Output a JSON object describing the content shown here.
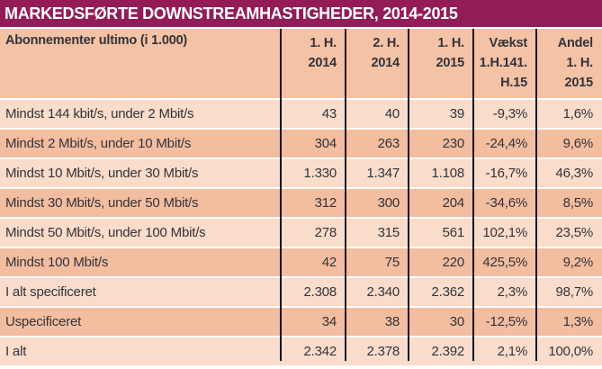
{
  "title": "MARKEDSFØRTE DOWNSTREAMHASTIGHEDER, 2014-2015",
  "colors": {
    "title_bg": "#931C58",
    "title_text": "#FFFFFF",
    "header_bg": "#F4C2A4",
    "row_dark": "#F3BD9F",
    "row_light": "#F9DCC9",
    "grid_line": "#17171C",
    "text": "#33333C",
    "separator": "#FFFFFF"
  },
  "table": {
    "corner_label": "Abonnementer ultimo (i 1.000)",
    "column_headers": [
      {
        "line1": "1. H.",
        "line2": "2014",
        "line3": ""
      },
      {
        "line1": "2. H.",
        "line2": "2014",
        "line3": ""
      },
      {
        "line1": "1. H.",
        "line2": "2015",
        "line3": ""
      },
      {
        "line1": "Vækst",
        "line2": "1.H.141.",
        "line3": "H.15"
      },
      {
        "line1": "Andel",
        "line2": "1. H.",
        "line3": "2015"
      }
    ],
    "rows": [
      {
        "label": "Mindst 144 kbit/s, under 2 Mbit/s",
        "values": [
          "43",
          "40",
          "39",
          "-9,3%",
          "1,6%"
        ]
      },
      {
        "label": "Mindst 2 Mbit/s, under 10 Mbit/s",
        "values": [
          "304",
          "263",
          "230",
          "-24,4%",
          "9,6%"
        ]
      },
      {
        "label": "Mindst 10 Mbit/s, under 30 Mbit/s",
        "values": [
          "1.330",
          "1.347",
          "1.108",
          "-16,7%",
          "46,3%"
        ]
      },
      {
        "label": "Mindst 30 Mbit/s, under 50 Mbit/s",
        "values": [
          "312",
          "300",
          "204",
          "-34,6%",
          "8,5%"
        ]
      },
      {
        "label": "Mindst 50 Mbit/s, under 100 Mbit/s",
        "values": [
          "278",
          "315",
          "561",
          "102,1%",
          "23,5%"
        ]
      },
      {
        "label": "Mindst 100 Mbit/s",
        "values": [
          "42",
          "75",
          "220",
          "425,5%",
          "9,2%"
        ]
      },
      {
        "label": "I alt specificeret",
        "values": [
          "2.308",
          "2.340",
          "2.362",
          "2,3%",
          "98,7%"
        ]
      },
      {
        "label": "Uspecificeret",
        "values": [
          "34",
          "38",
          "30",
          "-12,5%",
          "1,3%"
        ]
      },
      {
        "label": "I alt",
        "values": [
          "2.342",
          "2.378",
          "2.392",
          "2,1%",
          "100,0%"
        ]
      }
    ]
  },
  "chart_data": {
    "type": "table",
    "title": "MARKEDSFØRTE DOWNSTREAMHASTIGHEDER, 2014-2015",
    "columns": [
      "Abonnementer ultimo (i 1.000)",
      "1. H. 2014",
      "2. H. 2014",
      "1. H. 2015",
      "Vækst 1.H.141. H.15",
      "Andel 1. H. 2015"
    ],
    "units": {
      "subscription_columns": "thousands of subscriptions",
      "vækst": "percent",
      "andel": "percent"
    },
    "rows": [
      [
        "Mindst 144 kbit/s, under 2 Mbit/s",
        43,
        40,
        39,
        -9.3,
        1.6
      ],
      [
        "Mindst 2 Mbit/s, under 10 Mbit/s",
        304,
        263,
        230,
        -24.4,
        9.6
      ],
      [
        "Mindst 10 Mbit/s, under 30 Mbit/s",
        1330,
        1347,
        1108,
        -16.7,
        46.3
      ],
      [
        "Mindst 30 Mbit/s, under 50 Mbit/s",
        312,
        300,
        204,
        -34.6,
        8.5
      ],
      [
        "Mindst 50 Mbit/s, under 100 Mbit/s",
        278,
        315,
        561,
        102.1,
        23.5
      ],
      [
        "Mindst 100 Mbit/s",
        42,
        75,
        220,
        425.5,
        9.2
      ],
      [
        "I alt specificeret",
        2308,
        2340,
        2362,
        2.3,
        98.7
      ],
      [
        "Uspecificeret",
        34,
        38,
        30,
        -12.5,
        1.3
      ],
      [
        "I alt",
        2342,
        2378,
        2392,
        2.1,
        100.0
      ]
    ]
  }
}
